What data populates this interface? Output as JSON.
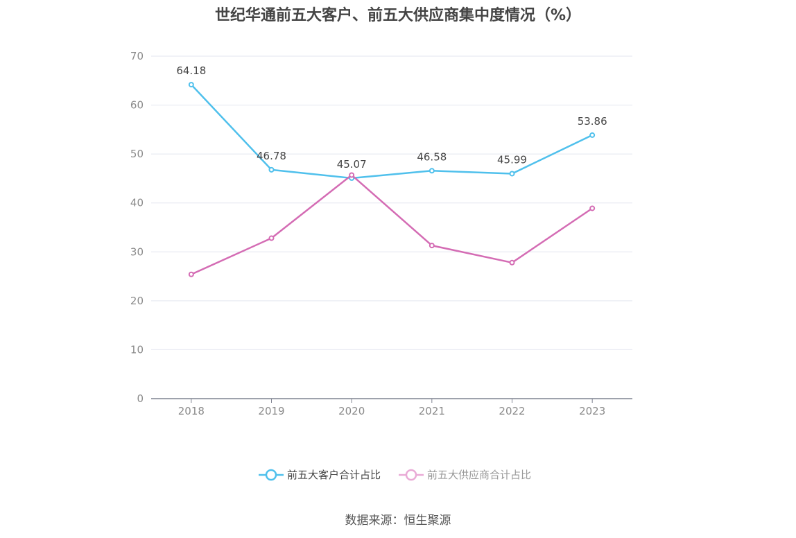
{
  "chart_data": {
    "type": "line",
    "title": "世纪华通前五大客户、前五大供应商集中度情况（%）",
    "categories": [
      "2018",
      "2019",
      "2020",
      "2021",
      "2022",
      "2023"
    ],
    "ylim": [
      0,
      70
    ],
    "yticks": [
      0,
      10,
      20,
      30,
      40,
      50,
      60,
      70
    ],
    "grid": true,
    "legend_position": "bottom",
    "series": [
      {
        "name": "前五大客户合计占比",
        "color": "#4fc0ec",
        "values": [
          64.18,
          46.78,
          45.07,
          46.58,
          45.99,
          53.86
        ],
        "labels": [
          "64.18",
          "46.78",
          "45.07",
          "46.58",
          "45.99",
          "53.86"
        ]
      },
      {
        "name": "前五大供应商合计占比",
        "color": "#d46cb4",
        "values": [
          25.4,
          32.8,
          45.7,
          31.3,
          27.8,
          38.9
        ]
      }
    ]
  },
  "source": "数据来源：恒生聚源"
}
